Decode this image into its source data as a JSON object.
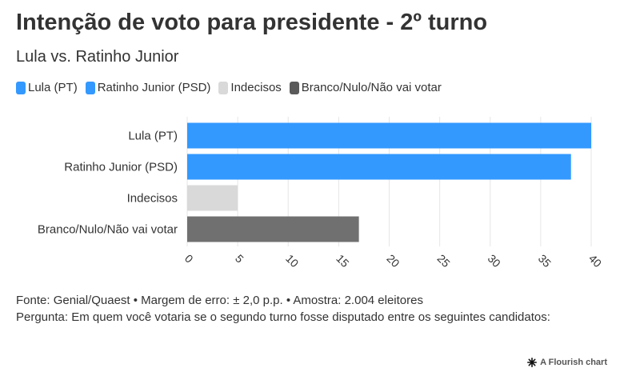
{
  "header": {
    "title": "Intenção de voto para presidente - 2º turno",
    "subtitle": "Lula vs. Ratinho Junior"
  },
  "legend": [
    {
      "label": "Lula (PT)",
      "color": "#3399ff"
    },
    {
      "label": "Ratinho Junior (PSD)",
      "color": "#3399ff"
    },
    {
      "label": "Indecisos",
      "color": "#d9d9d9"
    },
    {
      "label": "Branco/Nulo/Não vai votar",
      "color": "#5a5a5a"
    }
  ],
  "chart_data": {
    "type": "bar",
    "orientation": "horizontal",
    "categories": [
      "Lula (PT)",
      "Ratinho Junior (PSD)",
      "Indecisos",
      "Branco/Nulo/Não vai votar"
    ],
    "values": [
      40,
      38,
      5,
      17
    ],
    "colors": [
      "#3399ff",
      "#3399ff",
      "#d9d9d9",
      "#707070"
    ],
    "xlim": [
      0,
      40
    ],
    "xticks": [
      "0",
      "5",
      "10",
      "15",
      "20",
      "25",
      "30",
      "35",
      "40"
    ],
    "grid": true
  },
  "footer": {
    "source": "Fonte: Genial/Quaest • Margem de erro: ± 2,0 p.p. • Amostra: 2.004 eleitores",
    "question": "Pergunta: Em quem você votaria se o segundo turno fosse disputado entre os seguintes candidatos:"
  },
  "credit": {
    "label": "A Flourish chart",
    "icon": "flourish-icon"
  }
}
